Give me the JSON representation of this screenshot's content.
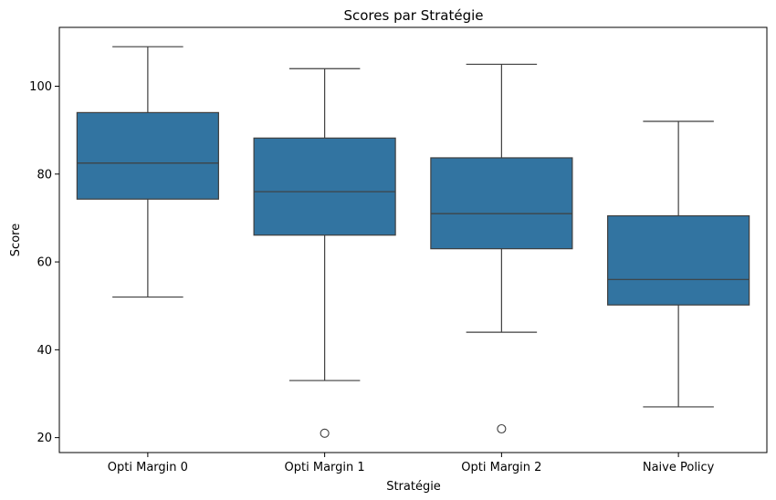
{
  "chart_data": {
    "type": "box",
    "title": "Scores par Stratégie",
    "xlabel": "Stratégie",
    "ylabel": "Score",
    "ylim": [
      16.6,
      113.4
    ],
    "yticks": [
      20,
      40,
      60,
      80,
      100
    ],
    "ytick_labels": [
      "20",
      "40",
      "60",
      "80",
      "100"
    ],
    "grid": false,
    "box_color": "#3274a1",
    "line_color": "#3f3f3f",
    "categories": [
      "Opti Margin 0",
      "Opti Margin 1",
      "Opti Margin 2",
      "Naive Policy"
    ],
    "boxes": [
      {
        "category": "Opti Margin 0",
        "whisker_low": 52,
        "q1": 74.3,
        "median": 82.5,
        "q3": 94,
        "whisker_high": 109,
        "outliers": []
      },
      {
        "category": "Opti Margin 1",
        "whisker_low": 33,
        "q1": 66.1,
        "median": 76,
        "q3": 88.2,
        "whisker_high": 104,
        "outliers": [
          21
        ]
      },
      {
        "category": "Opti Margin 2",
        "whisker_low": 44,
        "q1": 63,
        "median": 71,
        "q3": 83.7,
        "whisker_high": 105,
        "outliers": [
          22
        ]
      },
      {
        "category": "Naive Policy",
        "whisker_low": 27,
        "q1": 50.2,
        "median": 56,
        "q3": 70.5,
        "whisker_high": 92,
        "outliers": []
      }
    ]
  }
}
